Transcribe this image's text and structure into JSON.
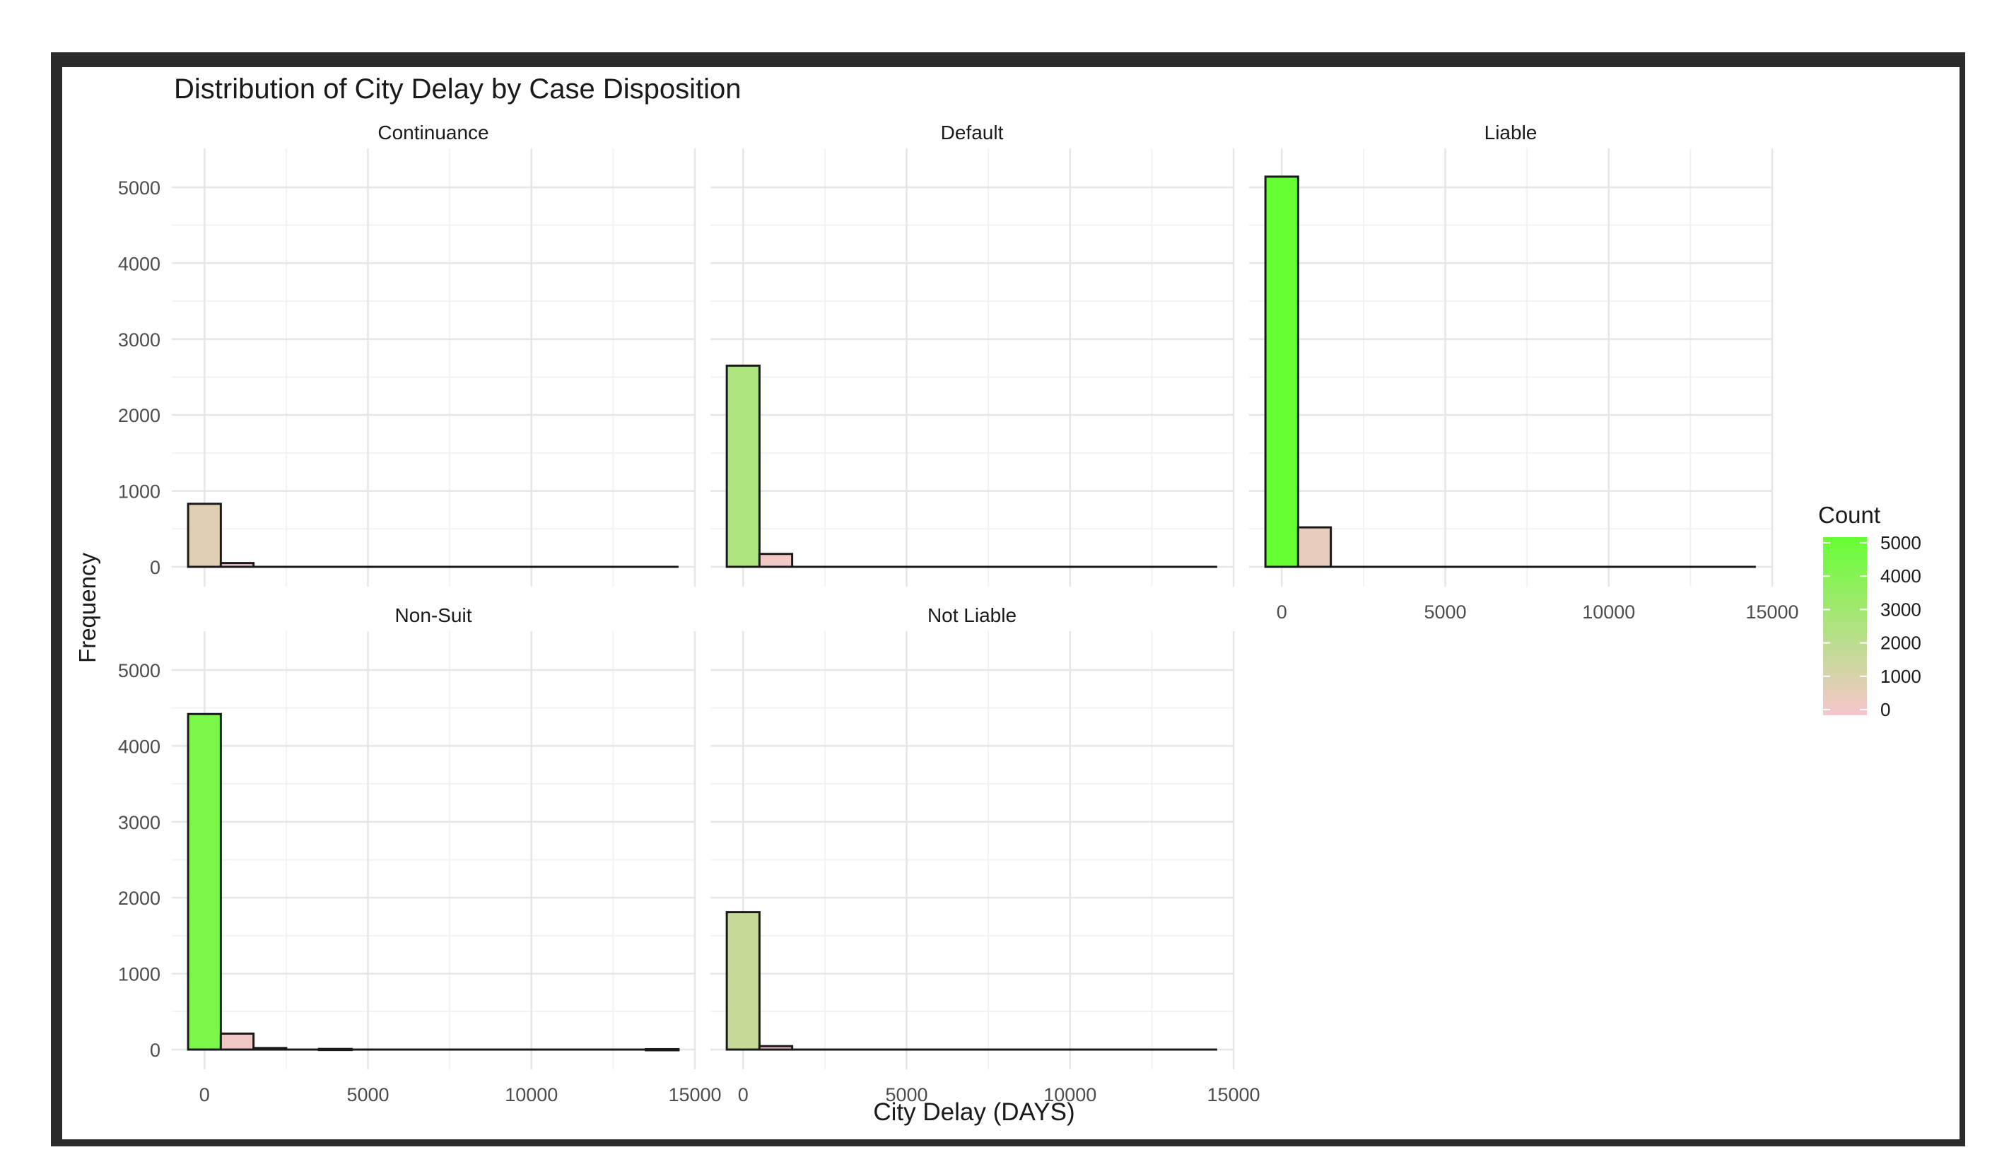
{
  "chart_data": {
    "type": "bar",
    "title": "Distribution of City Delay by Case Disposition",
    "xlabel": "City Delay (DAYS)",
    "ylabel": "Frequency",
    "xlim": [
      -1000,
      15000
    ],
    "ylim": [
      0,
      5400
    ],
    "x_ticks": [
      0,
      5000,
      10000,
      15000
    ],
    "y_ticks": [
      0,
      1000,
      2000,
      3000,
      4000,
      5000
    ],
    "bin_width": 1000,
    "grid": true,
    "legend": {
      "title": "Count",
      "position": "right",
      "labels": [
        "5000",
        "4000",
        "3000",
        "2000",
        "1000",
        "0"
      ],
      "colors": {
        "low": "#f7c6cc",
        "high": "#66ff33"
      }
    },
    "facets": [
      {
        "name": "Continuance",
        "bin_centers": [
          0,
          1000
        ],
        "values": [
          830,
          50
        ]
      },
      {
        "name": "Default",
        "bin_centers": [
          0,
          1000
        ],
        "values": [
          2650,
          170
        ]
      },
      {
        "name": "Liable",
        "bin_centers": [
          0,
          1000
        ],
        "values": [
          5140,
          520
        ]
      },
      {
        "name": "Non-Suit",
        "bin_centers": [
          0,
          1000,
          2000,
          4000,
          14000
        ],
        "values": [
          4420,
          210,
          20,
          8,
          5
        ]
      },
      {
        "name": "Not Liable",
        "bin_centers": [
          0,
          1000
        ],
        "values": [
          1810,
          45
        ]
      }
    ]
  }
}
